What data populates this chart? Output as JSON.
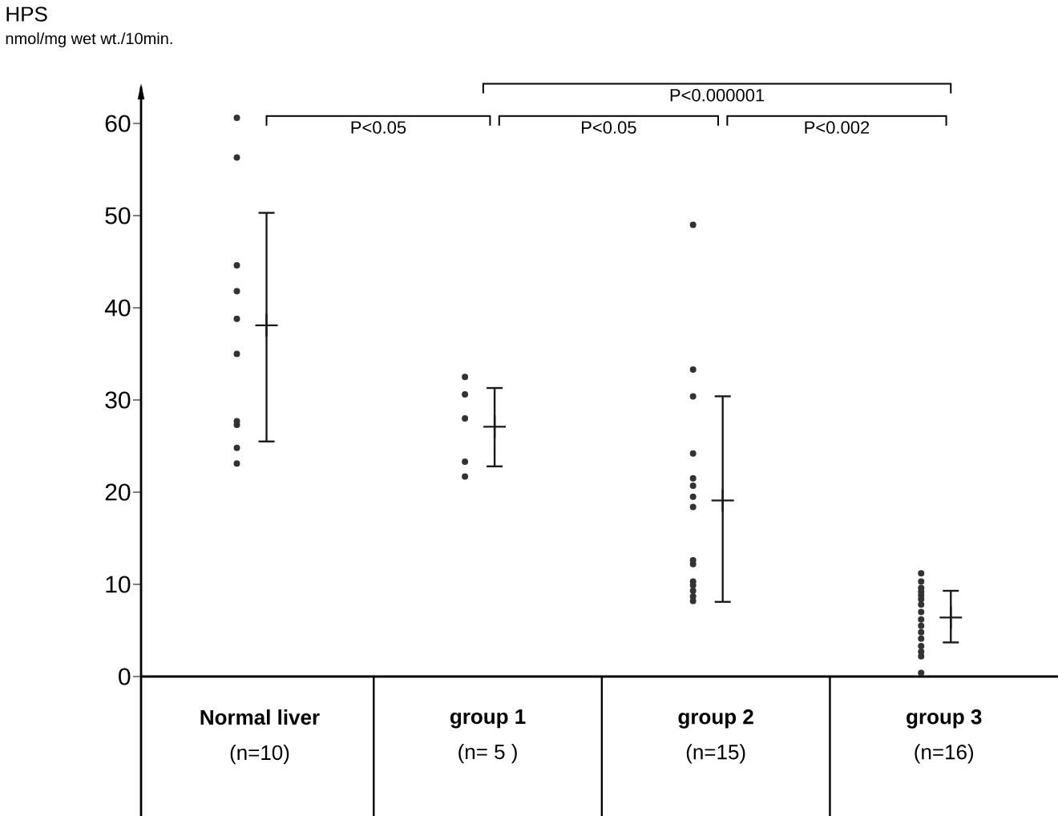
{
  "chart_data": {
    "type": "scatter",
    "ylabel": "HPS",
    "annotations": [
      "nmol/mg wet wt./10min.",
      "P<0.05",
      "P<0.000001",
      "P<0.05",
      "P<0.002"
    ],
    "categories": [
      "**Normal liver** (n=10)",
      "**group 1** (n= 5 )",
      "**group 2** (n=15)",
      "**group 3** (n=16)"
    ],
    "ylim": [
      0,
      64
    ],
    "yticks": [
      0,
      10,
      20,
      30,
      40,
      50,
      60
    ],
    "series": [
      {
        "type": "scatter",
        "marker": "circle",
        "color": "#333333",
        "x": [
          "**Normal liver** (n=10)",
          "**Normal liver** (n=10)",
          "**Normal liver** (n=10)",
          "**Normal liver** (n=10)",
          "**Normal liver** (n=10)",
          "**Normal liver** (n=10)",
          "**Normal liver** (n=10)",
          "**Normal liver** (n=10)",
          "**Normal liver** (n=10)",
          "**Normal liver** (n=10)",
          "**group 1** (n= 5 )",
          "**group 1** (n= 5 )",
          "**group 1** (n= 5 )",
          "**group 1** (n= 5 )",
          "**group 1** (n= 5 )",
          "**group 2** (n=15)",
          "**group 2** (n=15)",
          "**group 2** (n=15)",
          "**group 2** (n=15)",
          "**group 2** (n=15)",
          "**group 2** (n=15)",
          "**group 2** (n=15)",
          "**group 2** (n=15)",
          "**group 2** (n=15)",
          "**group 2** (n=15)",
          "**group 2** (n=15)",
          "**group 2** (n=15)",
          "**group 2** (n=15)",
          "**group 2** (n=15)",
          "**group 2** (n=15)",
          "**group 3** (n=16)",
          "**group 3** (n=16)",
          "**group 3** (n=16)",
          "**group 3** (n=16)",
          "**group 3** (n=16)",
          "**group 3** (n=16)",
          "**group 3** (n=16)",
          "**group 3** (n=16)",
          "**group 3** (n=16)",
          "**group 3** (n=16)",
          "**group 3** (n=16)",
          "**group 3** (n=16)",
          "**group 3** (n=16)",
          "**group 3** (n=16)",
          "**group 3** (n=16)",
          "**group 3** (n=16)"
        ],
        "values": [
          60.6,
          56.3,
          44.6,
          41.8,
          38.8,
          35.0,
          27.7,
          27.3,
          24.8,
          23.1,
          32.5,
          30.6,
          28.0,
          23.3,
          21.7,
          49.0,
          33.3,
          30.4,
          24.2,
          21.5,
          20.7,
          19.5,
          18.4,
          12.6,
          12.2,
          10.3,
          9.9,
          9.3,
          8.7,
          8.2,
          11.2,
          10.3,
          9.6,
          9.2,
          8.8,
          8.4,
          7.8,
          7.0,
          6.2,
          5.5,
          4.8,
          4.1,
          3.3,
          2.7,
          2.2,
          0.4
        ]
      },
      {
        "type": "scatter",
        "marker": "cross",
        "color": "#1a1a1a",
        "x": [
          "**Normal liver** (n=10)",
          "**group 1** (n= 5 )",
          "**group 2** (n=15)",
          "**group 3** (n=16)"
        ],
        "values": [
          38.1,
          27.1,
          19.1,
          6.4
        ],
        "errors": [
          [
            25.5,
            50.3
          ],
          [
            22.8,
            31.3
          ],
          [
            8.1,
            30.4
          ],
          [
            3.7,
            9.3
          ]
        ]
      }
    ]
  }
}
